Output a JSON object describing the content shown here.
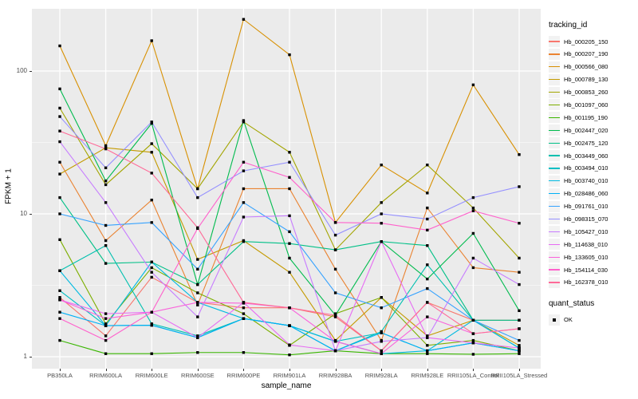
{
  "chart_data": {
    "type": "line",
    "xlabel": "sample_name",
    "ylabel": "FPKM + 1",
    "y_scale": "log10",
    "y_ticks": [
      1,
      10,
      100
    ],
    "ylim": [
      0.82,
      273
    ],
    "grid": "on",
    "legend_position": "right",
    "legend_title": "tracking_id",
    "point_marker": "black-square",
    "x_categories": [
      "PB350LA",
      "RRIM600LA",
      "RRIM600LE",
      "RRIM600SE",
      "RRIM600PE",
      "RRIM901LA",
      "RRIM928BA",
      "RRIM928LA",
      "RRIM928LE",
      "RRII105LA_Control",
      "RRII105LA_Stressed"
    ],
    "series": [
      {
        "name": "Hb_000205_150",
        "color": "#F8766D",
        "values": [
          2.6,
          1.4,
          3.6,
          2.4,
          2.2,
          2.2,
          1.9,
          1.1,
          2.4,
          1.8,
          1.8
        ]
      },
      {
        "name": "Hb_000207_190",
        "color": "#EA8331",
        "values": [
          23,
          6.5,
          12.5,
          2.3,
          15,
          15,
          4.1,
          1.3,
          11,
          4.2,
          3.9
        ]
      },
      {
        "name": "Hb_000566_080",
        "color": "#D89000",
        "values": [
          150,
          30,
          163,
          15,
          230,
          130,
          8.7,
          22,
          14,
          80,
          26
        ]
      },
      {
        "name": "Hb_000789_130",
        "color": "#C49A00",
        "values": [
          19,
          29,
          27,
          4.8,
          6.5,
          3.9,
          1.3,
          2.6,
          1.4,
          1.8,
          1.2
        ]
      },
      {
        "name": "Hb_000853_260",
        "color": "#A3A500",
        "values": [
          55,
          16,
          31,
          15,
          44,
          27,
          5.6,
          12,
          22,
          11,
          4.9
        ]
      },
      {
        "name": "Hb_001097_060",
        "color": "#7CAE00",
        "values": [
          6.6,
          1.7,
          4.2,
          2.8,
          2.0,
          1.2,
          2.0,
          2.6,
          1.2,
          1.3,
          1.1
        ]
      },
      {
        "name": "Hb_001195_190",
        "color": "#39B600",
        "values": [
          1.3,
          1.05,
          1.05,
          1.07,
          1.07,
          1.03,
          1.1,
          1.05,
          1.05,
          1.04,
          1.05
        ]
      },
      {
        "name": "Hb_002447_020",
        "color": "#00BB4E",
        "values": [
          75,
          17,
          43,
          3.2,
          45,
          4.9,
          1.95,
          6.4,
          3.5,
          7.3,
          2.1
        ]
      },
      {
        "name": "Hb_002475_120",
        "color": "#00C087",
        "values": [
          13,
          4.5,
          4.6,
          3.2,
          6.4,
          6.2,
          5.6,
          6.4,
          6.0,
          1.8,
          1.8
        ]
      },
      {
        "name": "Hb_003449_060",
        "color": "#00C0AF",
        "values": [
          4.0,
          6.0,
          1.7,
          1.4,
          1.85,
          1.65,
          1.1,
          1.5,
          4.4,
          1.8,
          1.15
        ]
      },
      {
        "name": "Hb_003494_010",
        "color": "#00BFC4",
        "values": [
          2.9,
          1.65,
          1.66,
          1.36,
          1.85,
          1.65,
          1.28,
          1.47,
          1.1,
          1.25,
          1.1
        ]
      },
      {
        "name": "Hb_003740_010",
        "color": "#00BAE0",
        "values": [
          4.0,
          1.65,
          4.6,
          2.4,
          1.85,
          1.65,
          1.28,
          1.05,
          1.1,
          1.8,
          1.15
        ]
      },
      {
        "name": "Hb_028486_060",
        "color": "#00B0F6",
        "values": [
          2.05,
          1.65,
          1.66,
          1.36,
          1.85,
          1.65,
          1.1,
          1.47,
          1.1,
          1.25,
          1.1
        ]
      },
      {
        "name": "Hb_091761_010",
        "color": "#35A2FF",
        "values": [
          10,
          8.3,
          8.7,
          4.1,
          12,
          7.5,
          2.8,
          2.2,
          3.0,
          1.8,
          1.3
        ]
      },
      {
        "name": "Hb_098315_070",
        "color": "#9590FF",
        "values": [
          48,
          21,
          44,
          13,
          20,
          23,
          7.1,
          10,
          9.2,
          13,
          15.5
        ]
      },
      {
        "name": "Hb_105427_010",
        "color": "#C77CFF",
        "values": [
          32,
          12,
          3.9,
          1.9,
          9.5,
          9.7,
          1.1,
          1.28,
          1.36,
          4.9,
          3.2
        ]
      },
      {
        "name": "Hb_114638_010",
        "color": "#E76BF3",
        "values": [
          2.5,
          2.0,
          2.05,
          1.36,
          2.4,
          1.21,
          1.1,
          6.4,
          1.36,
          1.25,
          1.15
        ]
      },
      {
        "name": "Hb_133605_010",
        "color": "#FA62DB",
        "values": [
          2.5,
          1.85,
          2.05,
          2.4,
          2.37,
          2.2,
          1.28,
          1.05,
          1.9,
          1.45,
          1.57
        ]
      },
      {
        "name": "Hb_154114_030",
        "color": "#FF61CC",
        "values": [
          1.85,
          1.3,
          2.05,
          7.9,
          23,
          18,
          8.7,
          8.6,
          7.7,
          10.5,
          8.6
        ]
      },
      {
        "name": "Hb_162378_010",
        "color": "#FF6A98",
        "values": [
          38,
          28.5,
          19.3,
          8.0,
          2.4,
          2.2,
          1.95,
          1.1,
          2.4,
          1.45,
          1.57
        ]
      }
    ],
    "quant_legend": {
      "title": "quant_status",
      "items": [
        {
          "label": "OK",
          "marker": "black-square"
        }
      ]
    }
  },
  "style_colors": {
    "panel_bg": "#EBEBEB",
    "grid_line": "#FFFFFF",
    "tick_text": "#4D4D4D",
    "legend_key_bg": "#F2F2F2",
    "point_color": "#000000"
  }
}
